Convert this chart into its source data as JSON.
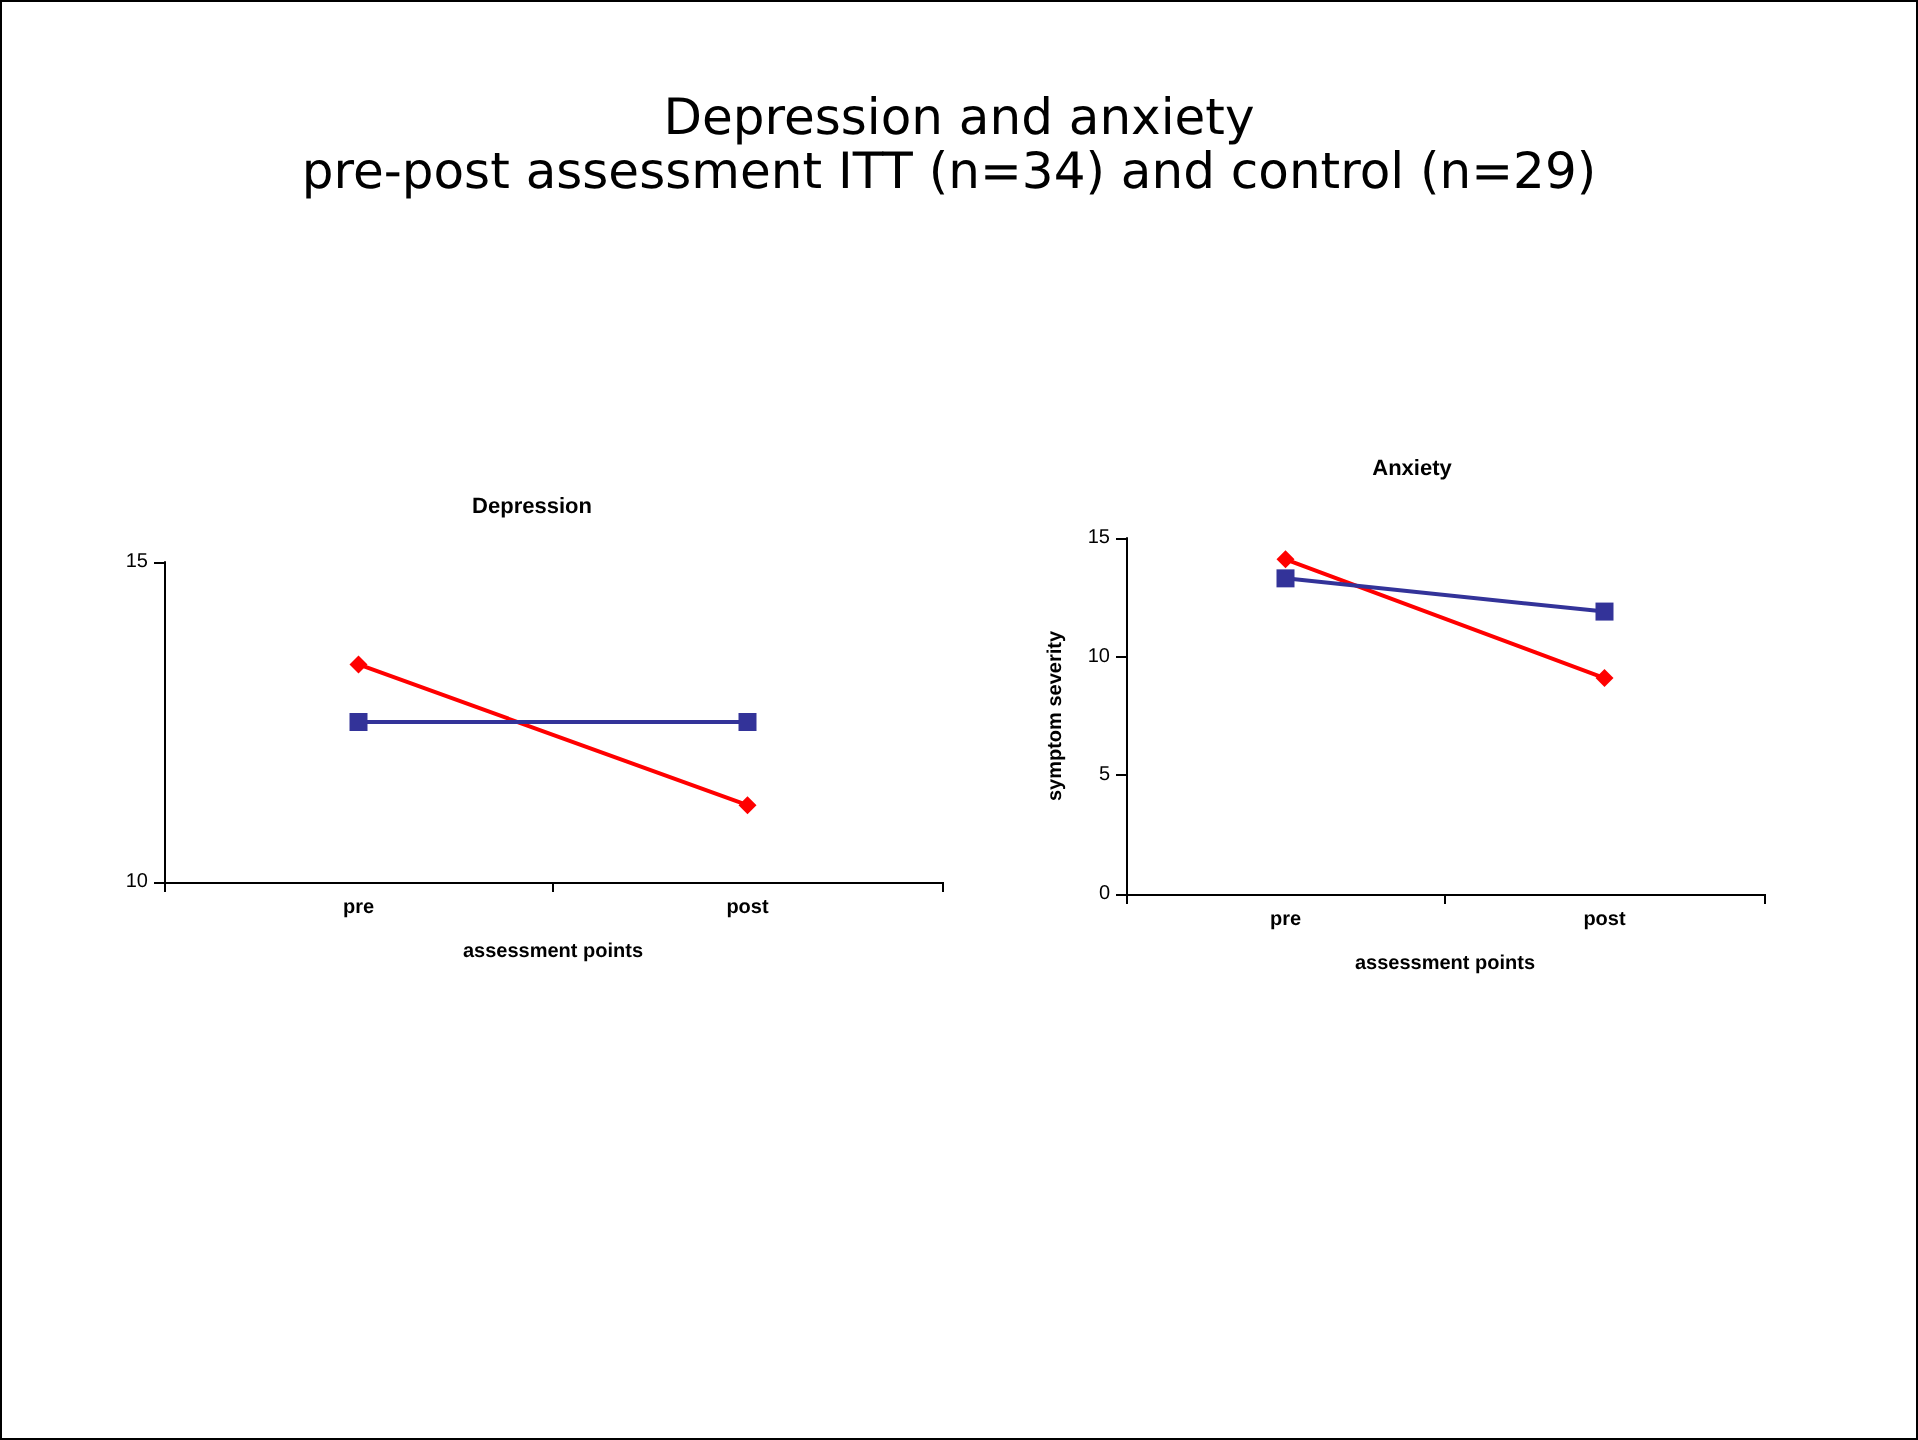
{
  "chart_data": [
    {
      "type": "line",
      "title": "Depression",
      "annotations": [
        "Depression and anxiety",
        "pre-post assessment ITT (n=34) and control (n=29)"
      ],
      "xlabel": "assessment points",
      "categories": [
        "pre",
        "post"
      ],
      "series": [
        {
          "color": "#ff0000",
          "values": [
            13.4,
            11.2
          ],
          "marker": "diamond"
        },
        {
          "color": "#333399",
          "values": [
            12.5,
            12.5
          ],
          "marker": "square"
        }
      ],
      "ylim": [
        10,
        15
      ],
      "yticks": [
        10,
        15
      ],
      "grid": false,
      "line_style": "solid"
    },
    {
      "type": "line",
      "title": "Anxiety",
      "xlabel": "assessment points",
      "ylabel": "symptom severity",
      "categories": [
        "pre",
        "post"
      ],
      "series": [
        {
          "color": "#ff0000",
          "values": [
            14.1,
            9.1
          ],
          "marker": "diamond"
        },
        {
          "color": "#333399",
          "values": [
            13.3,
            11.9
          ],
          "marker": "square"
        }
      ],
      "ylim": [
        0,
        15
      ],
      "yticks": [
        0,
        5,
        10,
        15
      ],
      "grid": false,
      "line_style": "solid"
    }
  ]
}
